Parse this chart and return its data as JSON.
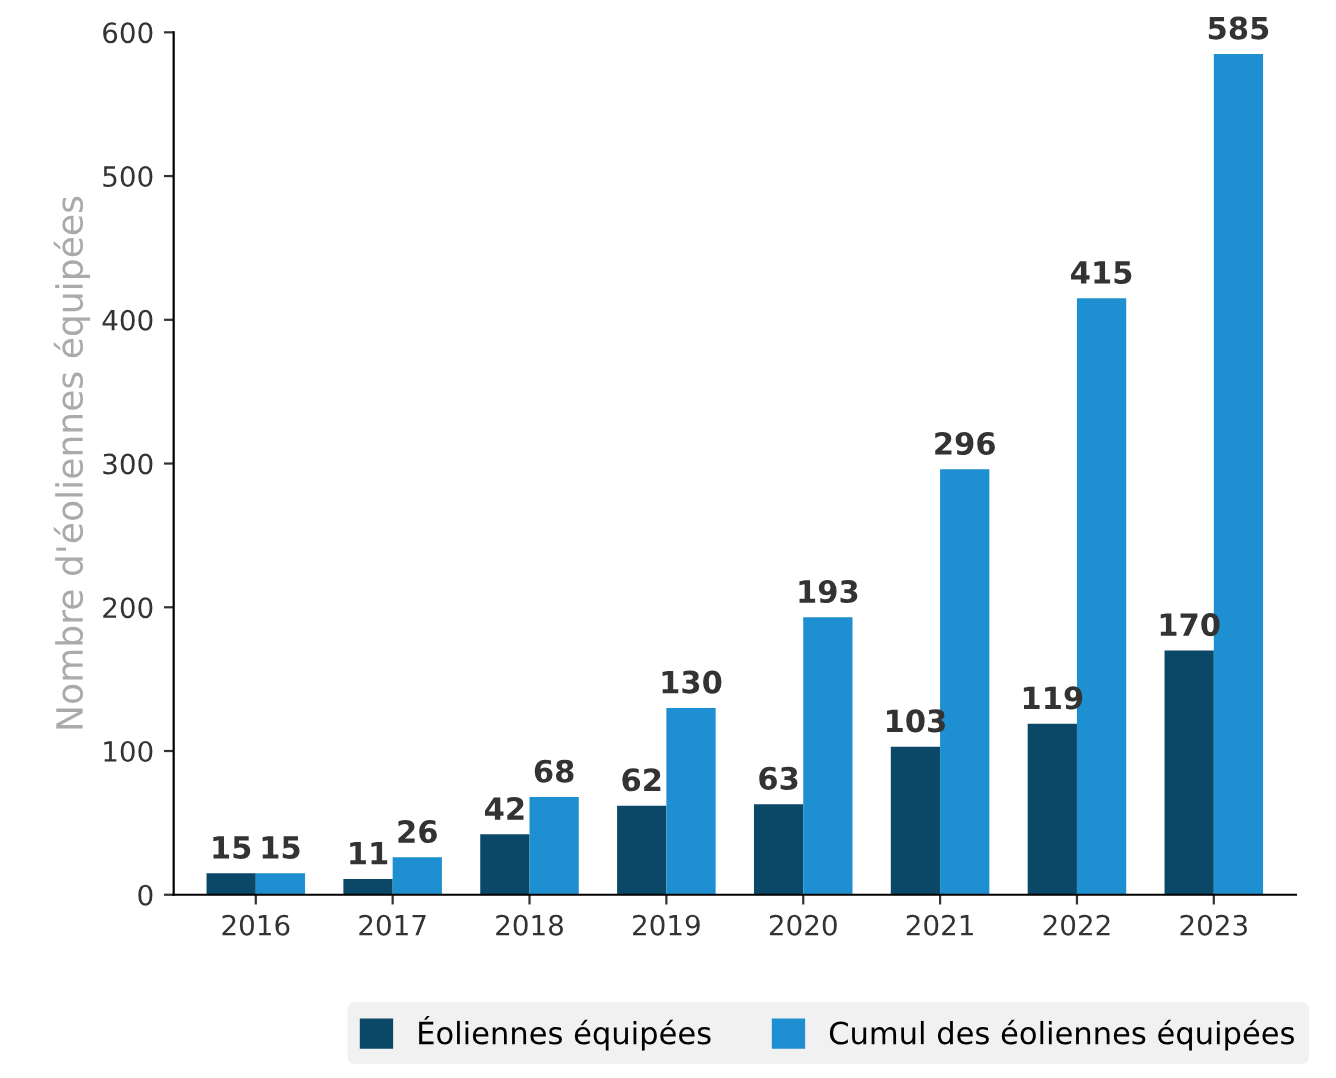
{
  "chart_data": {
    "type": "bar",
    "ylabel": "Nombre d'éoliennes équipées",
    "categories": [
      "2016",
      "2017",
      "2018",
      "2019",
      "2020",
      "2021",
      "2022",
      "2023"
    ],
    "series": [
      {
        "name": "Éoliennes équipées",
        "color": "#0b4766",
        "values": [
          15,
          11,
          42,
          62,
          63,
          103,
          119,
          170
        ]
      },
      {
        "name": "Cumul des éoliennes équipées",
        "color": "#1e8fd0",
        "values": [
          15,
          26,
          68,
          130,
          193,
          296,
          415,
          585
        ]
      }
    ],
    "ylim": [
      0,
      600
    ],
    "yticks": [
      0,
      100,
      200,
      300,
      400,
      500,
      600
    ],
    "grid": false,
    "legend": "bottom",
    "data_labels": true
  }
}
